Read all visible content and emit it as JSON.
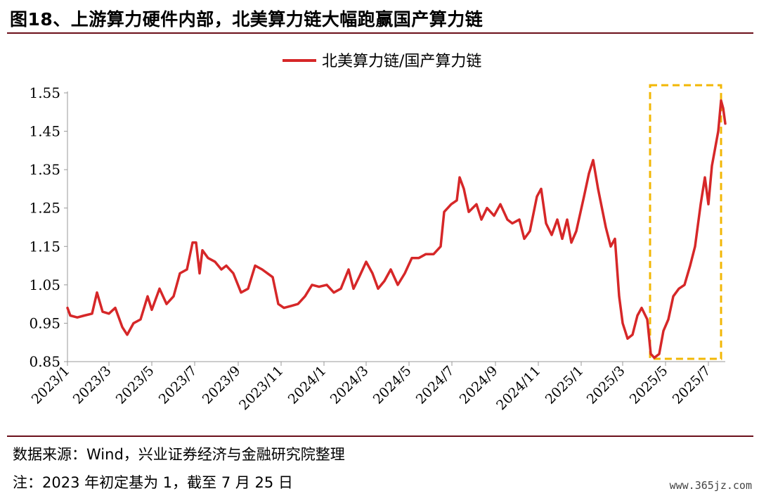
{
  "header": {
    "title": "图18、上游算力硬件内部，北美算力链大幅跑赢国产算力链"
  },
  "footer": {
    "source": "数据来源：Wind，兴业证券经济与金融研究院整理",
    "note": "注：2023 年初定基为 1，截至 7 月 25 日",
    "watermark": "www.365jz.com"
  },
  "colors": {
    "series": "#d62728",
    "highlight_box": "#f2b705",
    "rule": "#6b0f1a"
  },
  "chart_data": {
    "type": "line",
    "legend_position": "top-center",
    "grid": false,
    "ylim": [
      0.85,
      1.55
    ],
    "yticks": [
      "0.85",
      "0.95",
      "1.05",
      "1.15",
      "1.25",
      "1.35",
      "1.45",
      "1.55"
    ],
    "xticks": [
      "2023/1",
      "2023/3",
      "2023/5",
      "2023/7",
      "2023/9",
      "2023/11",
      "2024/1",
      "2024/3",
      "2024/5",
      "2024/7",
      "2024/9",
      "2024/11",
      "2025/1",
      "2025/3",
      "2025/5",
      "2025/7"
    ],
    "xlim": [
      "2023-01-01",
      "2025-07-25"
    ],
    "series": [
      {
        "name": "北美算力链/国产算力链",
        "points": [
          [
            "2023-01-01",
            0.99
          ],
          [
            "2023-01-05",
            0.97
          ],
          [
            "2023-01-15",
            0.965
          ],
          [
            "2023-01-25",
            0.97
          ],
          [
            "2023-02-05",
            0.975
          ],
          [
            "2023-02-12",
            1.03
          ],
          [
            "2023-02-20",
            0.98
          ],
          [
            "2023-03-01",
            0.975
          ],
          [
            "2023-03-10",
            0.99
          ],
          [
            "2023-03-20",
            0.94
          ],
          [
            "2023-03-27",
            0.92
          ],
          [
            "2023-04-05",
            0.95
          ],
          [
            "2023-04-15",
            0.96
          ],
          [
            "2023-04-25",
            1.02
          ],
          [
            "2023-05-01",
            0.985
          ],
          [
            "2023-05-12",
            1.04
          ],
          [
            "2023-05-22",
            1.0
          ],
          [
            "2023-06-01",
            1.02
          ],
          [
            "2023-06-10",
            1.08
          ],
          [
            "2023-06-20",
            1.09
          ],
          [
            "2023-06-28",
            1.16
          ],
          [
            "2023-07-03",
            1.16
          ],
          [
            "2023-07-08",
            1.08
          ],
          [
            "2023-07-12",
            1.14
          ],
          [
            "2023-07-20",
            1.12
          ],
          [
            "2023-07-30",
            1.11
          ],
          [
            "2023-08-08",
            1.09
          ],
          [
            "2023-08-15",
            1.1
          ],
          [
            "2023-08-25",
            1.08
          ],
          [
            "2023-09-05",
            1.03
          ],
          [
            "2023-09-15",
            1.04
          ],
          [
            "2023-09-25",
            1.1
          ],
          [
            "2023-10-05",
            1.09
          ],
          [
            "2023-10-20",
            1.07
          ],
          [
            "2023-10-28",
            1.0
          ],
          [
            "2023-11-05",
            0.99
          ],
          [
            "2023-11-15",
            0.995
          ],
          [
            "2023-11-25",
            1.0
          ],
          [
            "2023-12-05",
            1.02
          ],
          [
            "2023-12-15",
            1.05
          ],
          [
            "2023-12-25",
            1.045
          ],
          [
            "2024-01-05",
            1.05
          ],
          [
            "2024-01-15",
            1.03
          ],
          [
            "2024-01-25",
            1.04
          ],
          [
            "2024-02-05",
            1.09
          ],
          [
            "2024-02-12",
            1.04
          ],
          [
            "2024-02-20",
            1.07
          ],
          [
            "2024-03-01",
            1.11
          ],
          [
            "2024-03-10",
            1.08
          ],
          [
            "2024-03-18",
            1.04
          ],
          [
            "2024-03-27",
            1.06
          ],
          [
            "2024-04-05",
            1.09
          ],
          [
            "2024-04-15",
            1.05
          ],
          [
            "2024-04-25",
            1.08
          ],
          [
            "2024-05-05",
            1.12
          ],
          [
            "2024-05-15",
            1.12
          ],
          [
            "2024-05-25",
            1.13
          ],
          [
            "2024-06-05",
            1.13
          ],
          [
            "2024-06-15",
            1.15
          ],
          [
            "2024-06-20",
            1.24
          ],
          [
            "2024-06-30",
            1.26
          ],
          [
            "2024-07-08",
            1.27
          ],
          [
            "2024-07-12",
            1.33
          ],
          [
            "2024-07-18",
            1.3
          ],
          [
            "2024-07-25",
            1.24
          ],
          [
            "2024-08-05",
            1.26
          ],
          [
            "2024-08-12",
            1.22
          ],
          [
            "2024-08-20",
            1.25
          ],
          [
            "2024-08-30",
            1.23
          ],
          [
            "2024-09-08",
            1.26
          ],
          [
            "2024-09-18",
            1.22
          ],
          [
            "2024-09-25",
            1.21
          ],
          [
            "2024-10-05",
            1.22
          ],
          [
            "2024-10-12",
            1.17
          ],
          [
            "2024-10-20",
            1.19
          ],
          [
            "2024-10-30",
            1.28
          ],
          [
            "2024-11-05",
            1.3
          ],
          [
            "2024-11-12",
            1.21
          ],
          [
            "2024-11-20",
            1.18
          ],
          [
            "2024-11-28",
            1.22
          ],
          [
            "2024-12-05",
            1.17
          ],
          [
            "2024-12-12",
            1.22
          ],
          [
            "2024-12-18",
            1.16
          ],
          [
            "2024-12-25",
            1.19
          ],
          [
            "2025-01-05",
            1.28
          ],
          [
            "2025-01-12",
            1.34
          ],
          [
            "2025-01-18",
            1.375
          ],
          [
            "2025-01-25",
            1.3
          ],
          [
            "2025-02-05",
            1.2
          ],
          [
            "2025-02-12",
            1.15
          ],
          [
            "2025-02-18",
            1.17
          ],
          [
            "2025-02-24",
            1.02
          ],
          [
            "2025-03-01",
            0.95
          ],
          [
            "2025-03-08",
            0.91
          ],
          [
            "2025-03-15",
            0.92
          ],
          [
            "2025-03-22",
            0.97
          ],
          [
            "2025-03-28",
            0.99
          ],
          [
            "2025-04-05",
            0.96
          ],
          [
            "2025-04-10",
            0.87
          ],
          [
            "2025-04-15",
            0.86
          ],
          [
            "2025-04-22",
            0.87
          ],
          [
            "2025-04-28",
            0.93
          ],
          [
            "2025-05-05",
            0.96
          ],
          [
            "2025-05-12",
            1.02
          ],
          [
            "2025-05-20",
            1.04
          ],
          [
            "2025-05-28",
            1.05
          ],
          [
            "2025-06-05",
            1.1
          ],
          [
            "2025-06-12",
            1.15
          ],
          [
            "2025-06-20",
            1.26
          ],
          [
            "2025-06-26",
            1.33
          ],
          [
            "2025-07-01",
            1.26
          ],
          [
            "2025-07-06",
            1.36
          ],
          [
            "2025-07-10",
            1.4
          ],
          [
            "2025-07-15",
            1.45
          ],
          [
            "2025-07-19",
            1.53
          ],
          [
            "2025-07-22",
            1.51
          ],
          [
            "2025-07-25",
            1.47
          ]
        ]
      }
    ],
    "highlight_range": {
      "x": [
        "2025-04-15",
        "2025-07-25"
      ],
      "y": [
        0.85,
        1.57
      ]
    }
  }
}
